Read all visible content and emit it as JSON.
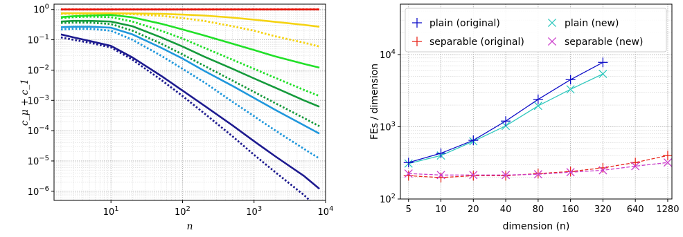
{
  "chart_data": [
    {
      "type": "line",
      "xlabel": "n",
      "ylabel": "c_μ + c_1",
      "xscale": "log",
      "yscale": "log",
      "xlim": [
        1.6,
        10000
      ],
      "ylim": [
        5e-07,
        1.5
      ],
      "grid": true,
      "x_tick_labels": [
        "10^1",
        "10^2",
        "10^3",
        "10^4"
      ],
      "y_tick_labels": [
        "10^0",
        "10^-1",
        "10^-2",
        "10^-3",
        "10^-4",
        "10^-5",
        "10^-6"
      ],
      "x": [
        2,
        3,
        5,
        10,
        20,
        50,
        100,
        200,
        500,
        1000,
        2000,
        5000,
        8192
      ],
      "series": [
        {
          "color": "#e8170b",
          "style": "solid",
          "values": [
            1,
            1,
            1,
            1,
            1,
            1,
            1,
            1,
            1,
            1,
            1,
            1,
            1
          ]
        },
        {
          "color": "#e8170b",
          "style": "dotted",
          "values": [
            1,
            1,
            1,
            1,
            1,
            1,
            1,
            1,
            1,
            1,
            1,
            1,
            1
          ]
        },
        {
          "color": "#f5d312",
          "style": "solid",
          "values": [
            0.75,
            0.75,
            0.75,
            0.75,
            0.74,
            0.72,
            0.68,
            0.63,
            0.54,
            0.46,
            0.39,
            0.31,
            0.27
          ]
        },
        {
          "color": "#f5d312",
          "style": "dotted",
          "values": [
            0.72,
            0.72,
            0.72,
            0.72,
            0.7,
            0.62,
            0.52,
            0.42,
            0.28,
            0.2,
            0.13,
            0.08,
            0.06
          ]
        },
        {
          "color": "#21e028",
          "style": "solid",
          "values": [
            0.56,
            0.6,
            0.63,
            0.66,
            0.55,
            0.34,
            0.22,
            0.14,
            0.074,
            0.046,
            0.028,
            0.016,
            0.012
          ]
        },
        {
          "color": "#21e028",
          "style": "dotted",
          "values": [
            0.52,
            0.56,
            0.58,
            0.56,
            0.4,
            0.2,
            0.11,
            0.055,
            0.022,
            0.011,
            0.0055,
            0.0022,
            0.0014
          ]
        },
        {
          "color": "#159a3b",
          "style": "solid",
          "values": [
            0.4,
            0.42,
            0.42,
            0.4,
            0.28,
            0.12,
            0.06,
            0.028,
            0.011,
            0.0053,
            0.0026,
            0.001,
            0.00062
          ]
        },
        {
          "color": "#159a3b",
          "style": "dotted",
          "values": [
            0.36,
            0.37,
            0.37,
            0.33,
            0.2,
            0.075,
            0.033,
            0.014,
            0.0045,
            0.0019,
            0.0008,
            0.00026,
            0.00014
          ]
        },
        {
          "color": "#1f97dc",
          "style": "solid",
          "values": [
            0.26,
            0.27,
            0.27,
            0.25,
            0.15,
            0.055,
            0.024,
            0.0095,
            0.003,
            0.0012,
            0.00048,
            0.00015,
            8e-05
          ]
        },
        {
          "color": "#1f97dc",
          "style": "dotted",
          "values": [
            0.22,
            0.23,
            0.23,
            0.2,
            0.1,
            0.03,
            0.011,
            0.004,
            0.0009,
            0.0003,
            0.0001,
            2.5e-05,
            1.2e-05
          ]
        },
        {
          "color": "#1d1a8f",
          "style": "solid",
          "values": [
            0.15,
            0.12,
            0.092,
            0.063,
            0.026,
            0.0065,
            0.0021,
            0.00068,
            0.00015,
            4.5e-05,
            1.4e-05,
            3.2e-06,
            1.2e-06
          ]
        },
        {
          "color": "#1d1a8f",
          "style": "dotted",
          "values": [
            0.12,
            0.1,
            0.08,
            0.056,
            0.022,
            0.0048,
            0.0014,
            0.00038,
            6.5e-05,
            1.6e-05,
            4.2e-06,
            7.5e-07,
            2.5e-07
          ]
        }
      ]
    },
    {
      "type": "line",
      "xlabel": "dimension (n)",
      "ylabel": "FEs / dimension",
      "xscale": "log2",
      "yscale": "log",
      "ylim": [
        100,
        50000
      ],
      "grid": true,
      "legend_position": "top",
      "categories": [
        "5",
        "10",
        "20",
        "40",
        "80",
        "160",
        "320",
        "640",
        "1280"
      ],
      "y_tick_labels": [
        "10^2",
        "10^3",
        "10^4"
      ],
      "series": [
        {
          "name": "plain (original)",
          "marker": "+",
          "color": "#1010c8",
          "x": [
            5,
            10,
            20,
            40,
            80,
            160,
            320
          ],
          "values": [
            320,
            430,
            650,
            1200,
            2400,
            4500,
            7800
          ]
        },
        {
          "name": "separable (original)",
          "marker": "+",
          "color": "#e8281e",
          "x": [
            5,
            10,
            20,
            40,
            80,
            160,
            320,
            640,
            1280
          ],
          "values": [
            210,
            198,
            210,
            210,
            225,
            240,
            270,
            320,
            400
          ]
        },
        {
          "name": "plain (new)",
          "marker": "x",
          "color": "#33c9bf",
          "x": [
            5,
            10,
            20,
            40,
            80,
            160,
            320
          ],
          "values": [
            310,
            400,
            630,
            1030,
            1950,
            3300,
            5400
          ]
        },
        {
          "name": "separable (new)",
          "marker": "x",
          "color": "#cc3fcc",
          "x": [
            5,
            10,
            20,
            40,
            80,
            160,
            320,
            640,
            1280
          ],
          "values": [
            225,
            215,
            215,
            215,
            220,
            235,
            250,
            285,
            320
          ]
        }
      ]
    }
  ]
}
